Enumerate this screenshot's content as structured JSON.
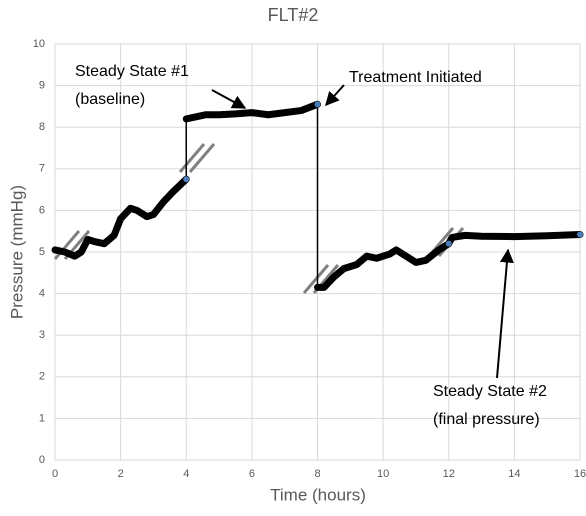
{
  "chart_data": {
    "type": "line",
    "title": "FLT#2",
    "x_label": "Time (hours)",
    "y_label": "Pressure (mmHg)",
    "series": [
      {
        "color": "#000000",
        "x": [
          0,
          0.3,
          0.6,
          0.8,
          1.0,
          1.2,
          1.5,
          1.8,
          2.0,
          2.3,
          2.5,
          2.8,
          3.0,
          3.3,
          3.6,
          4.0,
          4.0,
          4.3,
          4.6,
          5.0,
          5.5,
          6.0,
          6.5,
          7.0,
          7.5,
          8.0,
          8.0,
          8.2,
          8.5,
          8.8,
          9.2,
          9.5,
          9.8,
          10.2,
          10.4,
          10.7,
          11.0,
          11.3,
          11.7,
          12.0,
          12.1,
          12.5,
          13,
          14,
          15,
          16
        ],
        "values": [
          5.05,
          5.0,
          4.9,
          5.0,
          5.3,
          5.25,
          5.2,
          5.4,
          5.8,
          6.05,
          6.0,
          5.85,
          5.9,
          6.2,
          6.45,
          6.75,
          8.2,
          8.25,
          8.3,
          8.3,
          8.32,
          8.35,
          8.3,
          8.35,
          8.4,
          8.55,
          4.15,
          4.15,
          4.4,
          4.6,
          4.7,
          4.9,
          4.85,
          4.95,
          5.05,
          4.9,
          4.75,
          4.8,
          5.05,
          5.2,
          5.35,
          5.4,
          5.38,
          5.37,
          5.39,
          5.42
        ]
      }
    ],
    "markers": {
      "color": "#4a7ebb",
      "x": [
        4,
        8,
        12,
        16
      ],
      "values": [
        6.75,
        8.55,
        5.2,
        5.42
      ]
    },
    "annotations": [
      {
        "lines": [
          "Steady State #1",
          "(baseline)"
        ]
      },
      {
        "lines": [
          "Treatment Initiated"
        ]
      },
      {
        "lines": [
          "Steady State #2",
          "(final pressure)"
        ]
      }
    ],
    "xlim": [
      0,
      16
    ],
    "xticks": [
      0,
      2,
      4,
      6,
      8,
      10,
      12,
      14,
      16
    ],
    "ylim": [
      0,
      10
    ],
    "yticks": [
      0,
      1,
      2,
      3,
      4,
      5,
      6,
      7,
      8,
      9,
      10
    ],
    "grid": true
  }
}
